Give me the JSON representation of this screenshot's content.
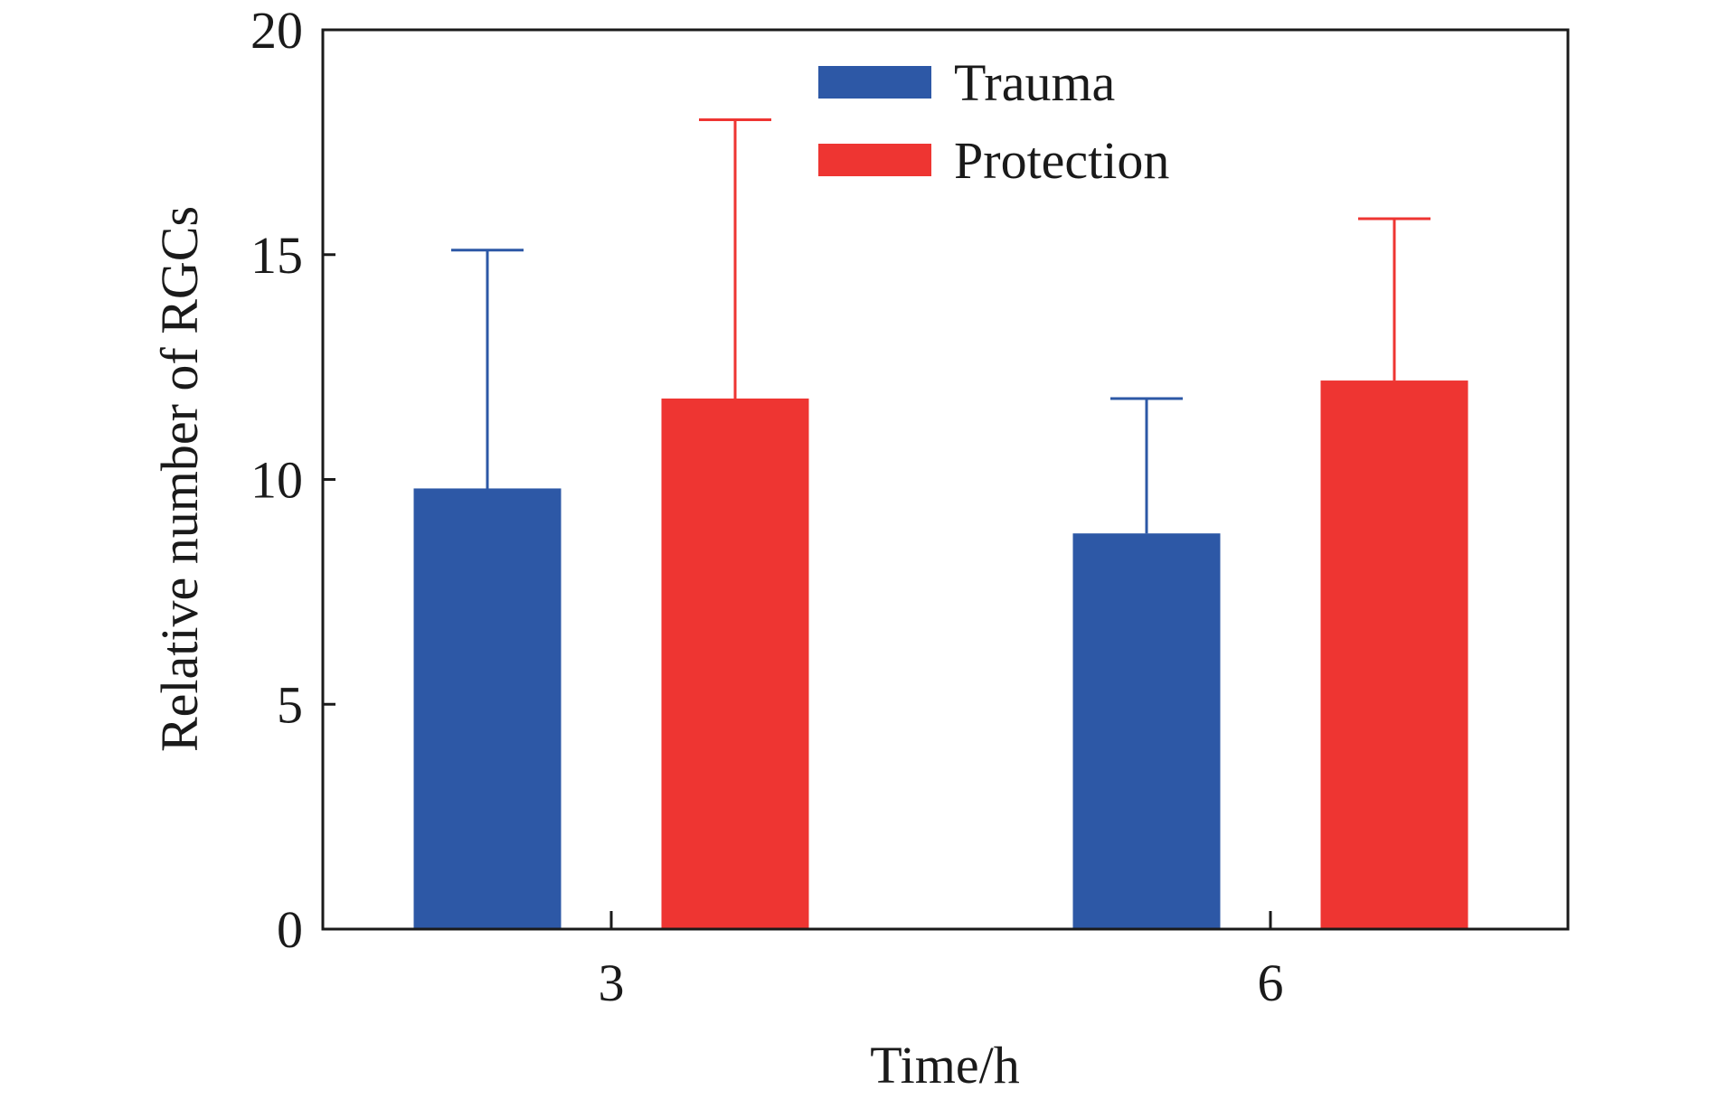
{
  "chart_data": {
    "type": "bar",
    "title": "",
    "xlabel": "Time/h",
    "ylabel": "Relative number of RGCs",
    "categories": [
      "3",
      "6"
    ],
    "ylim": [
      0,
      20
    ],
    "yticks": [
      0,
      5,
      10,
      15,
      20
    ],
    "grid": false,
    "legend_position": "top-center",
    "series": [
      {
        "name": "Trauma",
        "color": "#2d58a6",
        "values": [
          9.8,
          8.8
        ],
        "error_upper": [
          15.1,
          11.8
        ]
      },
      {
        "name": "Protection",
        "color": "#ee3532",
        "values": [
          11.8,
          12.2
        ],
        "error_upper": [
          18.0,
          15.8
        ]
      }
    ]
  }
}
